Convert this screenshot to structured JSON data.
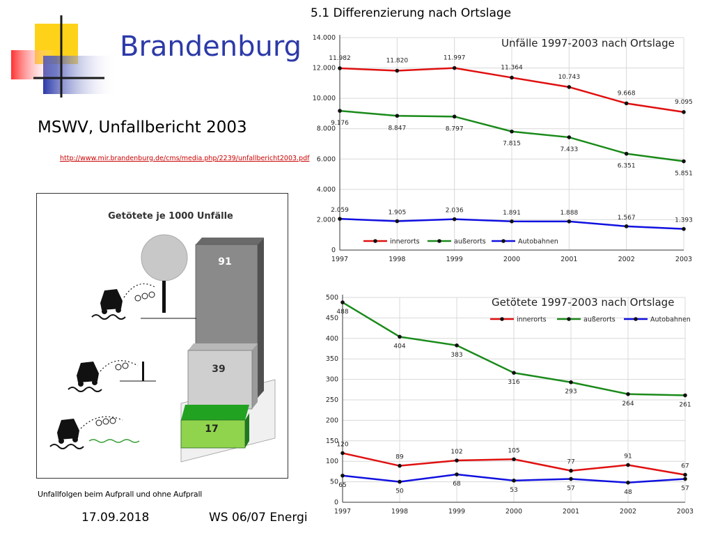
{
  "slide": {
    "title": "Brandenburg",
    "subtitle": "MSWV, Unfallbericht 2003",
    "source_link": "http://www.mir.brandenburg.de/cms/media.php/2239/unfallbericht2003.pdf",
    "footer_date": "17.09.2018",
    "footer_course": "WS 06/07 Energi",
    "section_heading": "5.1 Differenzierung nach Ortslage",
    "figure_caption": "Unfallfolgen beim Aufprall und ohne Aufprall",
    "accent_color": "#2c3aa8"
  },
  "chart_data": [
    {
      "type": "line",
      "title": "Unfälle 1997-2003 nach Ortslage",
      "x": [
        "1997",
        "1998",
        "1999",
        "2000",
        "2001",
        "2002",
        "2003"
      ],
      "ylim": [
        0,
        14000
      ],
      "yticks": [
        "0",
        "2.000",
        "4.000",
        "6.000",
        "8.000",
        "10.000",
        "12.000",
        "14.000"
      ],
      "grid": true,
      "legend": "bottom-left",
      "series": [
        {
          "name": "innerorts",
          "color": "#e01010",
          "values": [
            11982,
            11820,
            11997,
            11364,
            10743,
            9668,
            9095
          ],
          "labels": [
            "11.982",
            "11.820",
            "11.997",
            "11.364",
            "10.743",
            "9.668",
            "9.095"
          ]
        },
        {
          "name": "außerorts",
          "color": "#1a8a1a",
          "values": [
            9176,
            8847,
            8797,
            7815,
            7433,
            6351,
            5851
          ],
          "labels": [
            "9.176",
            "8.847",
            "8.797",
            "7.815",
            "7.433",
            "6.351",
            "5.851"
          ]
        },
        {
          "name": "Autobahnen",
          "color": "#1010e0",
          "values": [
            2059,
            1905,
            2036,
            1891,
            1888,
            1567,
            1393
          ],
          "labels": [
            "2.059",
            "1.905",
            "2.036",
            "1.891",
            "1.888",
            "1.567",
            "1.393"
          ]
        }
      ]
    },
    {
      "type": "line",
      "title": "Getötete 1997-2003 nach Ortslage",
      "x": [
        "1997",
        "1998",
        "1999",
        "2000",
        "2001",
        "2002",
        "2003"
      ],
      "ylim": [
        0,
        500
      ],
      "yticks": [
        "0",
        "50",
        "100",
        "150",
        "200",
        "250",
        "300",
        "350",
        "400",
        "450",
        "500"
      ],
      "grid": true,
      "legend": "top-right",
      "series": [
        {
          "name": "innerorts",
          "color": "#e01010",
          "values": [
            120,
            89,
            102,
            105,
            77,
            91,
            67
          ],
          "labels": [
            "120",
            "89",
            "102",
            "105",
            "77",
            "91",
            "67"
          ]
        },
        {
          "name": "außerorts",
          "color": "#1a8a1a",
          "values": [
            488,
            404,
            383,
            316,
            293,
            264,
            261
          ],
          "labels": [
            "488",
            "404",
            "383",
            "316",
            "293",
            "264",
            "261"
          ]
        },
        {
          "name": "Autobahnen",
          "color": "#1010e0",
          "values": [
            65,
            50,
            68,
            53,
            57,
            48,
            57
          ],
          "labels": [
            "65",
            "50",
            "68",
            "53",
            "57",
            "48",
            "57"
          ]
        }
      ]
    },
    {
      "type": "bar",
      "title": "Getötete je 1000 Unfälle",
      "categories": [
        "Aufprall Baum",
        "Aufprall Leitplanke",
        "ohne Aufprall"
      ],
      "values": [
        91,
        39,
        17
      ],
      "labels": [
        "91",
        "39",
        "17"
      ],
      "colors": [
        "#8a8a8a",
        "#c8c8c8",
        "#7fd040"
      ]
    }
  ]
}
